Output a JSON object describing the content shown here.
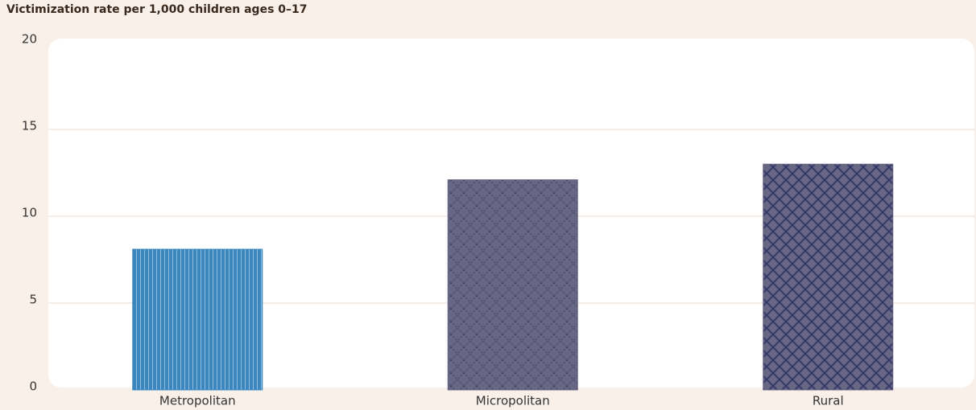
{
  "chart_data": {
    "type": "bar",
    "title": "Victimization rate per 1,000 children ages 0–17",
    "categories": [
      "Metropolitan",
      "Micropolitan",
      "Rural"
    ],
    "values": [
      8.1,
      12.1,
      13.0
    ],
    "colors": [
      "#3b86bd",
      "#676684",
      "#676684"
    ],
    "ylim": [
      0,
      20
    ],
    "yticks": [
      0,
      5,
      10,
      15,
      20
    ],
    "grid": true
  }
}
